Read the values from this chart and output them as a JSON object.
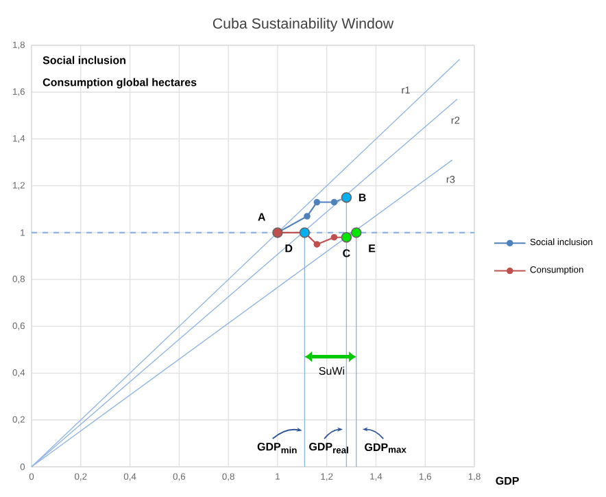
{
  "chart_data": {
    "type": "line",
    "title": "Cuba Sustainability Window",
    "xlabel": "GDP",
    "xlim": [
      0,
      1.8
    ],
    "ylim": [
      0,
      1.8
    ],
    "xticks": [
      0,
      {
        "value": 0.2,
        "label": "0,2"
      },
      {
        "value": 0.4,
        "label": "0,4"
      },
      {
        "value": 0.6,
        "label": "0,6"
      },
      {
        "value": 0.8,
        "label": "0,8"
      },
      1,
      {
        "value": 1.2,
        "label": "1,2"
      },
      {
        "value": 1.4,
        "label": "1,4"
      },
      {
        "value": 1.6,
        "label": "1,6"
      },
      {
        "value": 1.8,
        "label": "1,8"
      }
    ],
    "yticks": [
      0,
      {
        "value": 0.2,
        "label": "0,2"
      },
      {
        "value": 0.4,
        "label": "0,4"
      },
      {
        "value": 0.6,
        "label": "0,6"
      },
      {
        "value": 0.8,
        "label": "0,8"
      },
      1,
      {
        "value": 1.2,
        "label": "1,2"
      },
      {
        "value": 1.4,
        "label": "1,4"
      },
      {
        "value": 1.6,
        "label": "1,6"
      },
      {
        "value": 1.8,
        "label": "1,8"
      }
    ],
    "grid": true,
    "legend": "right",
    "series": [
      {
        "name": "Social inclusion",
        "color": "#4f81bd",
        "marker": "circle",
        "x": [
          1,
          1.12,
          1.16,
          1.23,
          1.28
        ],
        "values": [
          1,
          1.07,
          1.13,
          1.13,
          1.15
        ]
      },
      {
        "name": "Consumption",
        "color": "#c0504d",
        "marker": "circle",
        "x": [
          1,
          1.11,
          1.16,
          1.23,
          1.28
        ],
        "values": [
          1,
          1.0,
          0.95,
          0.98,
          0.98
        ]
      },
      {
        "name": "r1",
        "color": "#8eb4e3",
        "x": [
          0,
          1.74
        ],
        "values": [
          0,
          1.74
        ]
      },
      {
        "name": "r2",
        "color": "#8eb4e3",
        "x": [
          0,
          1.73
        ],
        "values": [
          0,
          1.57
        ]
      },
      {
        "name": "r3",
        "color": "#8eb4e3",
        "x": [
          0,
          1.71
        ],
        "values": [
          0,
          1.31
        ]
      },
      {
        "color": "#8eb4e3",
        "x": [
          1.11,
          1.11
        ],
        "values": [
          0,
          1.0
        ]
      },
      {
        "color": "#8eb4e3",
        "x": [
          1.28,
          1.28
        ],
        "values": [
          0,
          1.15
        ]
      },
      {
        "color": "#8eb4e3",
        "x": [
          1.32,
          1.32
        ],
        "values": [
          0,
          1.0
        ]
      },
      {
        "type": "scatter",
        "marker": "circle",
        "colors": [
          "#c0504d",
          "#00b0f0",
          "#00e600",
          "#00b0f0",
          "#00e600"
        ],
        "x": [
          1,
          1.28,
          1.28,
          1.11,
          1.32
        ],
        "values": [
          1,
          1.15,
          0.98,
          1.0,
          1.0
        ]
      }
    ],
    "ref_lines": [
      {
        "axis": "y",
        "value": 1,
        "color": "#8eb4e3",
        "line_style": "dashed"
      }
    ],
    "annotations": [
      "Social inclusion",
      "Consumption global hectares",
      {
        "text": "A",
        "x": 1,
        "y": 1
      },
      {
        "text": "B",
        "x": 1.28,
        "y": 1.15
      },
      {
        "text": "C",
        "x": 1.28,
        "y": 0.98
      },
      {
        "text": "D",
        "x": 1.11,
        "y": 1.0
      },
      {
        "text": "E",
        "x": 1.32,
        "y": 1.0
      },
      "SuWi",
      "GDP$_{min}$",
      "GDP$_{real}$",
      "GDP$_{max}$"
    ]
  }
}
